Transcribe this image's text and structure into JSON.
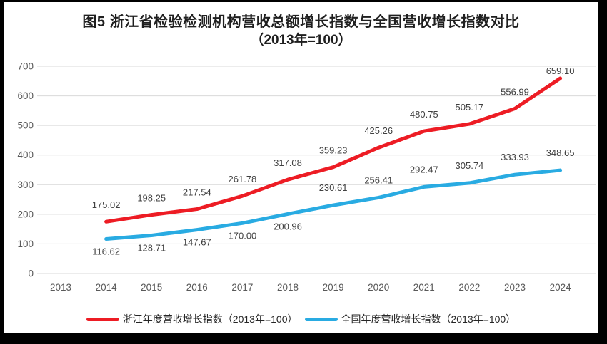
{
  "figure": {
    "title_line1": "图5  浙江省检验检测机构营收总额增长指数与全国营收增长指数对比",
    "title_line2": "（2013年=100）"
  },
  "legend": [
    {
      "key": "zhejiang",
      "label": "浙江年度营收增长指数（2013年=100）",
      "color": "#ED1C24"
    },
    {
      "key": "national",
      "label": "全国年度营收增长指数（2013年=100）",
      "color": "#29ABE2"
    }
  ],
  "chart_data": {
    "type": "line",
    "title": "图5 浙江省检验检测机构营收总额增长指数与全国营收增长指数对比（2013年=100）",
    "categories": [
      "2013",
      "2014",
      "2015",
      "2016",
      "2017",
      "2018",
      "2019",
      "2020",
      "2021",
      "2022",
      "2023",
      "2024"
    ],
    "series": [
      {
        "key": "zhejiang",
        "name": "浙江年度营收增长指数（2013年=100）",
        "color": "#ED1C24",
        "start_category": "2014",
        "values": [
          175.02,
          198.25,
          217.54,
          261.78,
          317.08,
          359.23,
          425.26,
          480.75,
          505.17,
          556.99,
          659.1
        ],
        "labels": [
          "175.02",
          "198.25",
          "217.54",
          "261.78",
          "317.08",
          "359.23",
          "425.26",
          "480.75",
          "505.17",
          "556.99",
          "659.10"
        ],
        "label_dy": [
          -19,
          -19,
          -19,
          -19,
          -19,
          -19,
          -19,
          -19,
          -19,
          -19,
          -6
        ]
      },
      {
        "key": "national",
        "name": "全国年度营收增长指数（2013年=100）",
        "color": "#29ABE2",
        "start_category": "2014",
        "values": [
          116.62,
          128.71,
          147.67,
          170.0,
          200.96,
          230.61,
          256.41,
          292.47,
          305.74,
          333.93,
          348.65
        ],
        "labels": [
          "116.62",
          "128.71",
          "147.67",
          "170.00",
          "200.96",
          "230.61",
          "256.41",
          "292.47",
          "305.74",
          "333.93",
          "348.65"
        ],
        "label_dy": [
          22,
          22,
          22,
          22,
          22,
          -20,
          -20,
          -20,
          -20,
          -20,
          -20
        ]
      }
    ],
    "ylim": [
      0,
      700
    ],
    "yticks": [
      0,
      100,
      200,
      300,
      400,
      500,
      600,
      700
    ],
    "grid": "horizontal",
    "legend_position": "bottom",
    "colors": {
      "grid": "#D9D9D9",
      "tick_text": "#595959",
      "data_label": "#404040",
      "line_zhejiang": "#ED1C24",
      "line_national": "#29ABE2",
      "panel_bg": "#FFFFFF",
      "frame_bg": "#000000"
    }
  }
}
